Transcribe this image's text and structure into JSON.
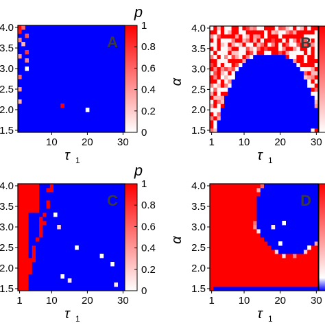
{
  "colors": {
    "low": "#ffffff",
    "high": "#ff0000",
    "blue": "#0000ff",
    "axis": "#000000"
  },
  "chart_data": [
    {
      "panel": "A",
      "type": "heatmap",
      "xlabel": "τ",
      "xlabel_sub": "1",
      "ylabel": "",
      "xlim": [
        1,
        30
      ],
      "ylim": [
        1.5,
        4.0
      ],
      "xticks": [
        "10",
        "20",
        "30"
      ],
      "xtick_values": [
        10,
        20,
        30
      ],
      "yticks": [
        "1.5",
        "2.0",
        "2.5",
        "3.0",
        "3.5",
        "4.0"
      ],
      "ytick_values": [
        1.5,
        2.0,
        2.5,
        3.0,
        3.5,
        4.0
      ],
      "colorbar": {
        "label": "p",
        "ticks": [
          "0",
          "0.2",
          "0.4",
          "0.6",
          "0.8",
          "1"
        ],
        "tick_values": [
          0,
          0.2,
          0.4,
          0.6,
          0.8,
          1
        ]
      },
      "description_of_values": "Dominantly blue region (value below colorbar range) with sparse red/pink cells at small τ1 and a few isolated cells",
      "cells": [
        {
          "x": 1,
          "y": 4.0,
          "p": 1.0
        },
        {
          "x": 2,
          "y": 4.0,
          "p": 0.6
        },
        {
          "x": 1,
          "y": 3.9,
          "p": 0.9
        },
        {
          "x": 3,
          "y": 3.8,
          "p": 0.7
        },
        {
          "x": 1,
          "y": 3.7,
          "p": 0.5
        },
        {
          "x": 2,
          "y": 3.6,
          "p": 0.3
        },
        {
          "x": 3,
          "y": 3.4,
          "p": 0.8
        },
        {
          "x": 1,
          "y": 3.3,
          "p": 0.4
        },
        {
          "x": 3,
          "y": 3.2,
          "p": 0.5
        },
        {
          "x": 3,
          "y": 3.0,
          "p": 0.0
        },
        {
          "x": 1,
          "y": 2.8,
          "p": 0.6
        },
        {
          "x": 1,
          "y": 2.5,
          "p": 0.4
        },
        {
          "x": 1,
          "y": 2.2,
          "p": 0.3
        },
        {
          "x": 13,
          "y": 2.1,
          "p": 1.0
        },
        {
          "x": 20,
          "y": 2.0,
          "p": 0.0
        }
      ]
    },
    {
      "panel": "B",
      "type": "heatmap",
      "xlabel": "τ",
      "xlabel_sub": "1",
      "ylabel": "α",
      "xlim": [
        1,
        30
      ],
      "ylim": [
        1.5,
        4.0
      ],
      "xticks": [
        "1",
        "10",
        "20",
        "30"
      ],
      "xtick_values": [
        1,
        10,
        20,
        30
      ],
      "yticks": [
        "1.5",
        "2.0",
        "2.5",
        "3.0",
        "3.5",
        "4.0"
      ],
      "ytick_values": [
        1.5,
        2.0,
        2.5,
        3.0,
        3.5,
        4.0
      ],
      "colorbar": {
        "label": "p"
      },
      "description_of_values": "Blue dome in the lower-middle; noisy red/white/pink region along top and left edges"
    },
    {
      "panel": "C",
      "type": "heatmap",
      "xlabel": "τ",
      "xlabel_sub": "1",
      "ylabel": "",
      "xlim": [
        1,
        30
      ],
      "ylim": [
        1.5,
        4.0
      ],
      "xticks": [
        "1",
        "10",
        "20",
        "30"
      ],
      "xtick_values": [
        1,
        10,
        20,
        30
      ],
      "yticks": [
        "1.5",
        "2.0",
        "2.5",
        "3.0",
        "3.5",
        "4.0"
      ],
      "ytick_values": [
        1.5,
        2.0,
        2.5,
        3.0,
        3.5,
        4.0
      ],
      "colorbar": {
        "label": "p",
        "ticks": [
          "0",
          "0.2",
          "0.4",
          "0.6",
          "0.8",
          "1"
        ],
        "tick_values": [
          0,
          0.2,
          0.4,
          0.6,
          0.8,
          1
        ]
      },
      "description_of_values": "Red region for small τ1 (≈1–4) with a red diagonal streak toward τ1≈10 at α≈4; blue elsewhere with scattered white cells"
    },
    {
      "panel": "D",
      "type": "heatmap",
      "xlabel": "τ",
      "xlabel_sub": "1",
      "ylabel": "α",
      "xlim": [
        1,
        30
      ],
      "ylim": [
        1.5,
        4.0
      ],
      "xticks": [
        "1",
        "10",
        "20",
        "30"
      ],
      "xtick_values": [
        1,
        10,
        20,
        30
      ],
      "yticks": [
        "1.5",
        "2.0",
        "2.5",
        "3.0",
        "3.5",
        "4.0"
      ],
      "ytick_values": [
        1.5,
        2.0,
        2.5,
        3.0,
        3.5,
        4.0
      ],
      "colorbar": {
        "label": "p"
      },
      "description_of_values": "Red region over most of the panel; blue rounded region in upper right (τ1≈14–30, α≈2.3–4.0); blue strip along α≈1.5"
    }
  ],
  "panel_labels": [
    "A",
    "B",
    "C",
    "D"
  ]
}
